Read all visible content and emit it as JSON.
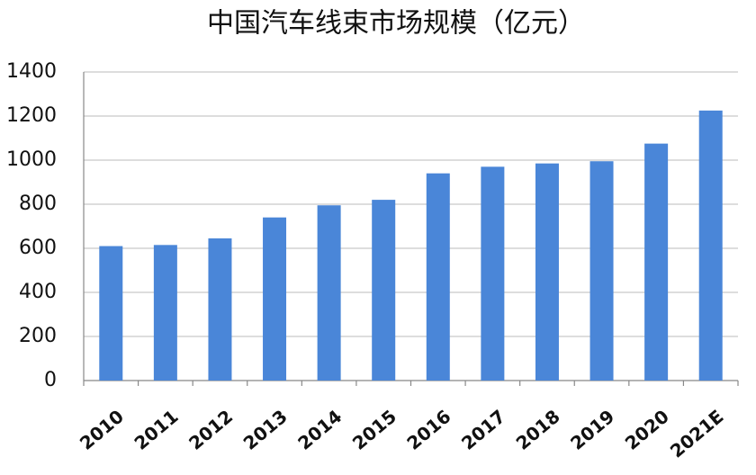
{
  "chart_data": {
    "type": "bar",
    "title": "中国汽车线束市场规模（亿元）",
    "categories": [
      "2010",
      "2011",
      "2012",
      "2013",
      "2014",
      "2015",
      "2016",
      "2017",
      "2018",
      "2019",
      "2020",
      "2021E"
    ],
    "values": [
      610,
      615,
      645,
      740,
      795,
      820,
      940,
      970,
      985,
      995,
      1075,
      1225
    ],
    "color": "#4a86d8",
    "ylim": [
      0,
      1400
    ],
    "yticks": [
      0,
      200,
      400,
      600,
      800,
      1000,
      1200,
      1400
    ],
    "grid": true
  }
}
